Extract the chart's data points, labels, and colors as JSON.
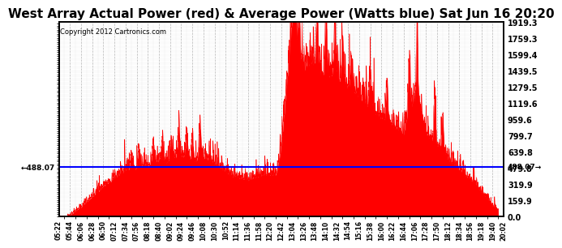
{
  "title": "West Array Actual Power (red) & Average Power (Watts blue) Sat Jun 16 20:20",
  "copyright": "Copyright 2012 Cartronics.com",
  "avg_power": 488.07,
  "ymax": 1919.3,
  "ymin": 0.0,
  "yticks": [
    0.0,
    159.9,
    319.9,
    479.8,
    639.8,
    799.7,
    959.6,
    1119.6,
    1279.5,
    1439.5,
    1599.4,
    1759.3,
    1919.3
  ],
  "ytick_labels": [
    "0.0",
    "159.9",
    "319.9",
    "479.8",
    "639.8",
    "799.7",
    "959.6",
    "1119.6",
    "1279.5",
    "1439.5",
    "1599.4",
    "1759.3",
    "1919.3"
  ],
  "fill_color": "#FF0000",
  "line_color": "#0000FF",
  "avg_label": "488.07",
  "background_color": "#FFFFFF",
  "grid_color": "#999999",
  "title_fontsize": 11,
  "x_times": [
    "05:22",
    "05:44",
    "06:06",
    "06:28",
    "06:50",
    "07:12",
    "07:34",
    "07:56",
    "08:18",
    "08:40",
    "09:02",
    "09:24",
    "09:46",
    "10:08",
    "10:30",
    "10:52",
    "11:14",
    "11:36",
    "11:58",
    "12:20",
    "12:42",
    "13:04",
    "13:26",
    "13:48",
    "14:10",
    "14:32",
    "14:54",
    "15:16",
    "15:38",
    "16:00",
    "16:22",
    "16:44",
    "17:06",
    "17:28",
    "17:50",
    "18:12",
    "18:34",
    "18:56",
    "19:18",
    "19:40",
    "20:02"
  ]
}
